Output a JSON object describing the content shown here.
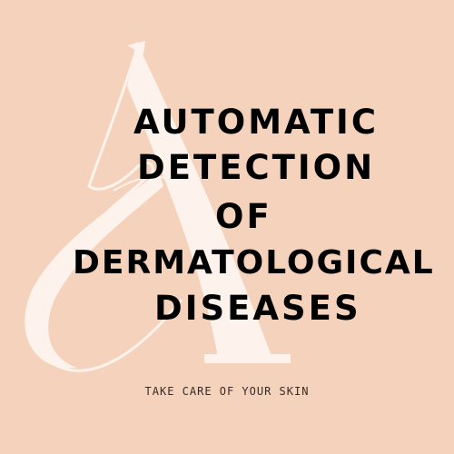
{
  "title": {
    "line1": "AUTOMATIC",
    "line2": "DETECTION",
    "line3": "OF",
    "line4": "DERMATOLOGICAL",
    "line5": "DISEASES"
  },
  "tagline": "TAKE CARE OF YOUR SKIN",
  "logo": {
    "letter": "A",
    "icon": "monogram-letter-a"
  },
  "colors": {
    "background": "#f5d2bc",
    "monogram": "#fdf3ec",
    "title": "#000000",
    "tagline": "#3a2a24"
  }
}
